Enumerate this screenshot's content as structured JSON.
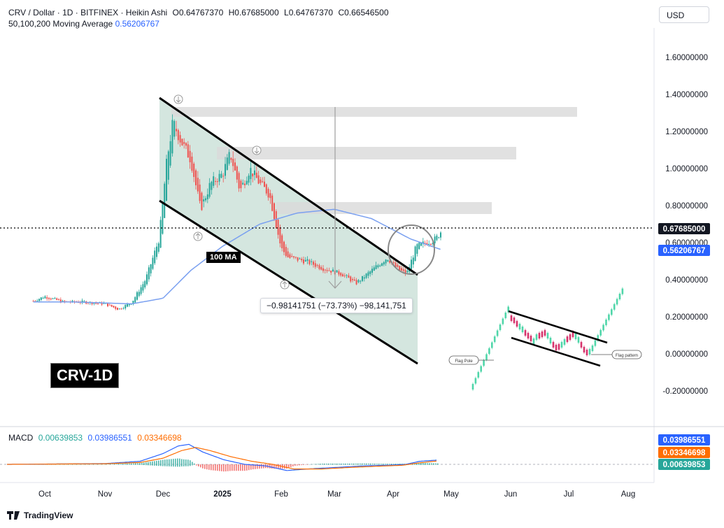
{
  "header": {
    "symbol": "CRV / Dollar · 1D · BITFINEX · Heikin Ashi",
    "open": "O0.64767370",
    "high": "H0.67685000",
    "low": "L0.64767370",
    "close": "C0.66546500",
    "ma_label": "50,100,200 Moving Average",
    "ma_value": "0.56206767"
  },
  "currency_button": "USD",
  "crv_label": "CRV-1D",
  "ma100_label": "100 MA",
  "measurement": "−0.98141751 (−73.73%) −98,141,751",
  "flag_labels": {
    "pole": "Flag Pole",
    "pattern": "Flag pattern"
  },
  "macd": {
    "label": "MACD",
    "v1": "0.00639853",
    "v2": "0.03986551",
    "v3": "0.03346698"
  },
  "footer": "TradingView",
  "colors": {
    "up": "#26a69a",
    "down": "#ef5350",
    "ma": "#2962ff",
    "macd_signal": "#ff6d00",
    "channel_fill": "#cfe3dc"
  },
  "chart_data": {
    "type": "candlestick",
    "title": "CRV / Dollar · 1D · BITFINEX · Heikin Ashi",
    "price_axis": {
      "ticks": [
        "1.60000000",
        "1.40000000",
        "1.20000000",
        "1.00000000",
        "0.80000000",
        "0.60000000",
        "0.40000000",
        "0.20000000",
        "0.00000000",
        "-0.20000000"
      ],
      "range": [
        -0.2,
        1.6
      ]
    },
    "time_axis": {
      "ticks": [
        "Oct",
        "Nov",
        "Dec",
        "2025",
        "Feb",
        "Mar",
        "Apr",
        "May",
        "Jun",
        "Jul",
        "Aug"
      ]
    },
    "price_labels": {
      "last": "0.67685000",
      "ma": "0.56206767"
    },
    "price_series_approx": [
      [
        "Sep 25",
        0.285
      ],
      [
        "Oct 1",
        0.31
      ],
      [
        "Oct 10",
        0.28
      ],
      [
        "Oct 20",
        0.28
      ],
      [
        "Nov 1",
        0.27
      ],
      [
        "Nov 8",
        0.24
      ],
      [
        "Nov 15",
        0.28
      ],
      [
        "Nov 22",
        0.4
      ],
      [
        "Nov 29",
        0.62
      ],
      [
        "Dec 3",
        1.05
      ],
      [
        "Dec 6",
        1.25
      ],
      [
        "Dec 10",
        1.15
      ],
      [
        "Dec 15",
        1.05
      ],
      [
        "Dec 20",
        0.78
      ],
      [
        "Dec 25",
        0.92
      ],
      [
        "Jan 1",
        0.97
      ],
      [
        "Jan 5",
        1.08
      ],
      [
        "Jan 10",
        0.88
      ],
      [
        "Jan 15",
        1.0
      ],
      [
        "Jan 20",
        0.92
      ],
      [
        "Jan 25",
        0.86
      ],
      [
        "Feb 1",
        0.57
      ],
      [
        "Feb 5",
        0.52
      ],
      [
        "Feb 15",
        0.5
      ],
      [
        "Feb 25",
        0.46
      ],
      [
        "Mar 5",
        0.43
      ],
      [
        "Mar 12",
        0.38
      ],
      [
        "Mar 20",
        0.45
      ],
      [
        "Mar 28",
        0.52
      ],
      [
        "Apr 3",
        0.46
      ],
      [
        "Apr 8",
        0.43
      ],
      [
        "Apr 13",
        0.58
      ],
      [
        "Apr 18",
        0.6
      ],
      [
        "Apr 23",
        0.62
      ],
      [
        "Apr 26",
        0.665
      ]
    ],
    "ma_series_approx": [
      [
        "Sep 25",
        0.28
      ],
      [
        "Oct 15",
        0.28
      ],
      [
        "Nov 15",
        0.27
      ],
      [
        "Dec 1",
        0.3
      ],
      [
        "Dec 15",
        0.45
      ],
      [
        "Jan 1",
        0.58
      ],
      [
        "Jan 20",
        0.7
      ],
      [
        "Feb 10",
        0.76
      ],
      [
        "Mar 1",
        0.78
      ],
      [
        "Mar 20",
        0.73
      ],
      [
        "Apr 10",
        0.62
      ],
      [
        "Apr 26",
        0.562
      ]
    ],
    "annotations": [
      "100 MA",
      "−0.98141751 (−73.73%) −98,141,751",
      "CRV-1D",
      "Flag Pole",
      "Flag pattern"
    ],
    "macd_values": {
      "macd": "0.03986551",
      "signal": "0.03346698",
      "histogram": "0.00639853"
    },
    "grid": false
  }
}
